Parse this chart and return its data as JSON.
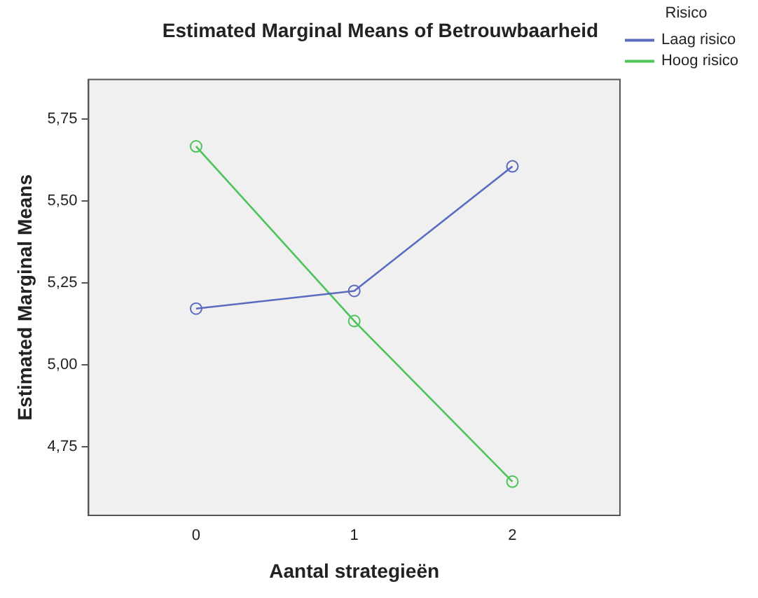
{
  "chart_data": {
    "type": "line",
    "title": "Estimated Marginal Means of Betrouwbaarheid",
    "xlabel": "Aantal strategieën",
    "ylabel": "Estimated Marginal Means",
    "legend_title": "Risico",
    "legend": "top right",
    "grid": false,
    "marker": "circle",
    "line_style": "solid",
    "x": [
      0,
      1,
      2
    ],
    "xlim": [
      -0.68,
      2.68
    ],
    "xticks": [
      0,
      1,
      2
    ],
    "ylim": [
      4.54,
      5.87
    ],
    "yticks": [
      {
        "value": 4.75,
        "label": "4,75"
      },
      {
        "value": 5.0,
        "label": "5,00"
      },
      {
        "value": 5.25,
        "label": "5,25"
      },
      {
        "value": 5.5,
        "label": "5,50"
      },
      {
        "value": 5.75,
        "label": "5,75"
      }
    ],
    "series": [
      {
        "name": "Laag risico",
        "color": "#5b6bc0",
        "values": [
          5.171,
          5.225,
          5.605
        ]
      },
      {
        "name": "Hoog risico",
        "color": "#4cc458",
        "values": [
          5.666,
          5.133,
          4.643
        ]
      }
    ]
  }
}
